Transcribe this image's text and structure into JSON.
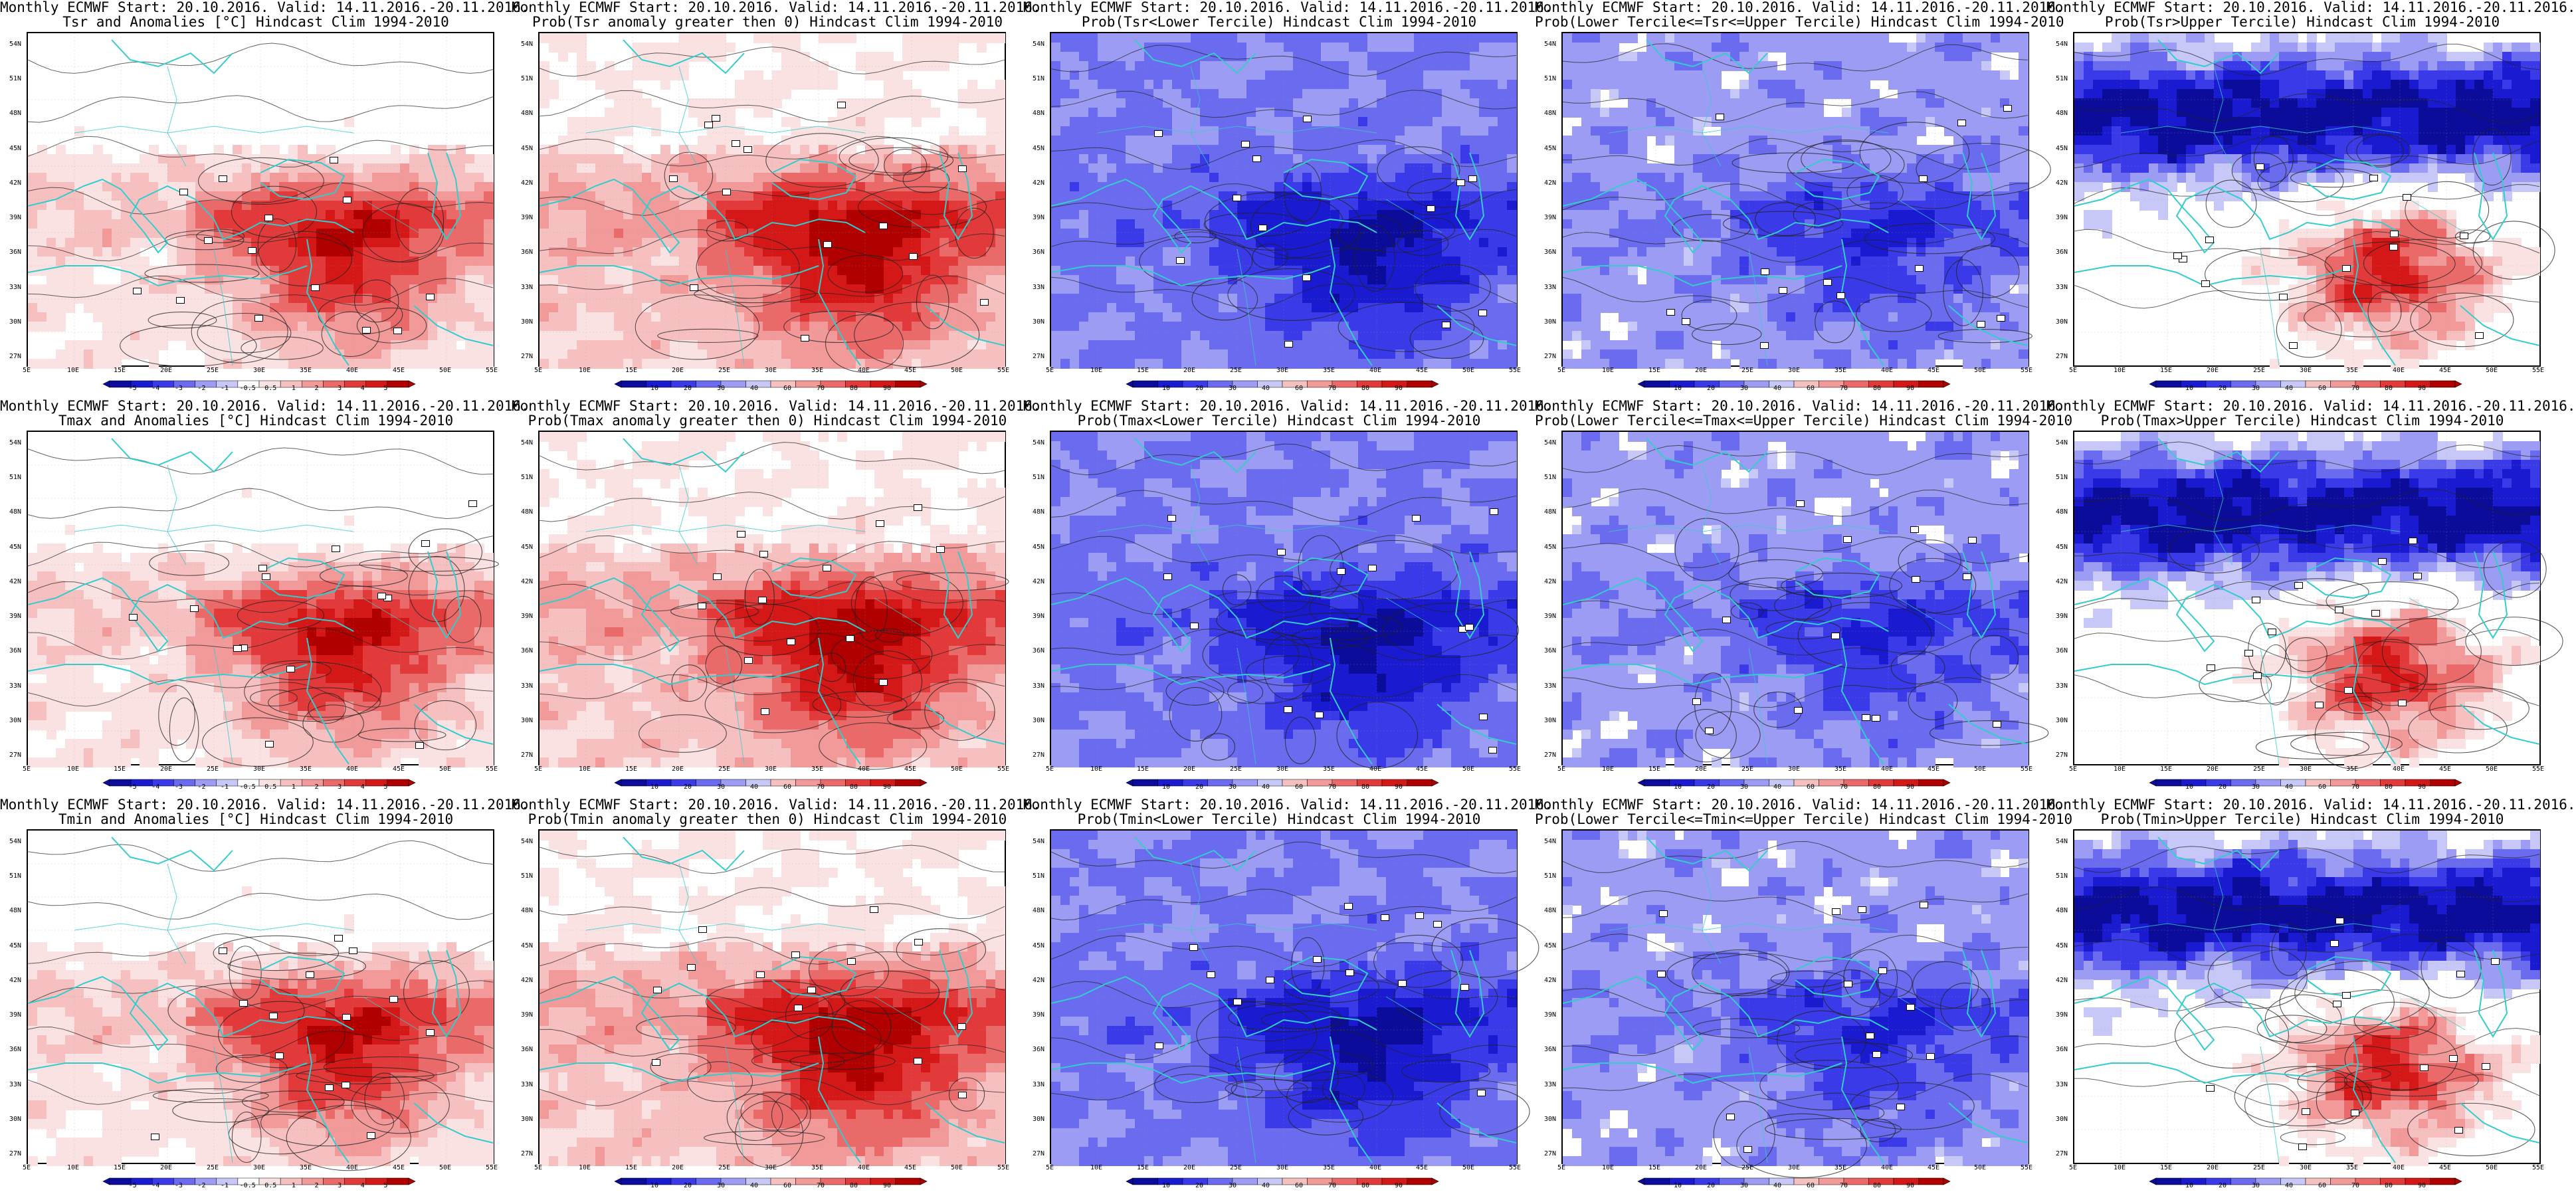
{
  "colors": {
    "red_shades": [
      "#fbe2e2",
      "#f7c0c0",
      "#f29a9a",
      "#ea6a6a",
      "#e23a3a",
      "#d41818",
      "#b00000"
    ],
    "blue_shades": [
      "#0c0c9a",
      "#1a1ad0",
      "#3a3ae8",
      "#6b6bf0",
      "#9c9cf4",
      "#c8c8f8"
    ],
    "coast": "#33cccc",
    "contour": "#222222"
  },
  "panels": [
    {
      "title1": "Monthly ECMWF Start: 20.10.2016. Valid: 14.11.2016.-20.11.2016.",
      "title2": "Tsr and Anomalies [°C] Hindcast Clim 1994-2010",
      "scheme": "anom"
    },
    {
      "title1": "Monthly ECMWF Start: 20.10.2016. Valid: 14.11.2016.-20.11.2016.",
      "title2": "Prob(Tsr anomaly greater then 0) Hindcast Clim 1994-2010",
      "scheme": "prob_red"
    },
    {
      "title1": "Monthly ECMWF Start: 20.10.2016. Valid: 14.11.2016.-20.11.2016.",
      "title2": "Prob(Tsr<Lower Tercile) Hindcast Clim 1994-2010",
      "scheme": "prob_blue_strong"
    },
    {
      "title1": "Monthly ECMWF Start: 20.10.2016. Valid: 14.11.2016.-20.11.2016.",
      "title2": "Prob(Lower Tercile<=Tsr<=Upper Tercile) Hindcast Clim 1994-2010",
      "scheme": "prob_blue"
    },
    {
      "title1": "Monthly ECMWF Start: 20.10.2016. Valid: 14.11.2016.-20.11.2016.",
      "title2": "Prob(Tsr>Upper Tercile) Hindcast Clim 1994-2010",
      "scheme": "prob_mixed"
    },
    {
      "title1": "Monthly ECMWF Start: 20.10.2016. Valid: 14.11.2016.-20.11.2016.",
      "title2": "Tmax and Anomalies [°C] Hindcast Clim 1994-2010",
      "scheme": "anom"
    },
    {
      "title1": "Monthly ECMWF Start: 20.10.2016. Valid: 14.11.2016.-20.11.2016.",
      "title2": "Prob(Tmax anomaly greater then 0) Hindcast Clim 1994-2010",
      "scheme": "prob_red"
    },
    {
      "title1": "Monthly ECMWF Start: 20.10.2016. Valid: 14.11.2016.-20.11.2016.",
      "title2": "Prob(Tmax<Lower Tercile) Hindcast Clim 1994-2010",
      "scheme": "prob_blue_strong"
    },
    {
      "title1": "Monthly ECMWF Start: 20.10.2016. Valid: 14.11.2016.-20.11.2016.",
      "title2": "Prob(Lower Tercile<=Tmax<=Upper Tercile) Hindcast Clim 1994-2010",
      "scheme": "prob_blue"
    },
    {
      "title1": "Monthly ECMWF Start: 20.10.2016. Valid: 14.11.2016.-20.11.2016.",
      "title2": "Prob(Tmax>Upper Tercile) Hindcast Clim 1994-2010",
      "scheme": "prob_mixed"
    },
    {
      "title1": "Monthly ECMWF Start: 20.10.2016. Valid: 14.11.2016.-20.11.2016.",
      "title2": "Tmin and Anomalies [°C] Hindcast Clim 1994-2010",
      "scheme": "anom"
    },
    {
      "title1": "Monthly ECMWF Start: 20.10.2016. Valid: 14.11.2016.-20.11.2016.",
      "title2": "Prob(Tmin anomaly greater then 0) Hindcast Clim 1994-2010",
      "scheme": "prob_red"
    },
    {
      "title1": "Monthly ECMWF Start: 20.10.2016. Valid: 14.11.2016.-20.11.2016.",
      "title2": "Prob(Tmin<Lower Tercile) Hindcast Clim 1994-2010",
      "scheme": "prob_blue_strong"
    },
    {
      "title1": "Monthly ECMWF Start: 20.10.2016. Valid: 14.11.2016.-20.11.2016.",
      "title2": "Prob(Lower Tercile<=Tmin<=Upper Tercile) Hindcast Clim 1994-2010",
      "scheme": "prob_blue"
    },
    {
      "title1": "Monthly ECMWF Start: 20.10.2016. Valid: 14.11.2016.-20.11.2016.",
      "title2": "Prob(Tmin>Upper Tercile) Hindcast Clim 1994-2010",
      "scheme": "prob_mixed"
    }
  ],
  "lat_labels": [
    "54N",
    "51N",
    "48N",
    "45N",
    "42N",
    "39N",
    "36N",
    "33N",
    "30N",
    "27N"
  ],
  "lon_labels": [
    "5E",
    "10E",
    "15E",
    "20E",
    "25E",
    "30E",
    "35E",
    "40E",
    "45E",
    "50E",
    "55E"
  ],
  "colorbars": {
    "anom": [
      "-5",
      "-4",
      "-3",
      "-2",
      "-1",
      "-0.5",
      "0.5",
      "1",
      "2",
      "3",
      "4",
      "5"
    ],
    "prob": [
      "10",
      "20",
      "30",
      "40",
      "60",
      "70",
      "80",
      "90"
    ]
  }
}
